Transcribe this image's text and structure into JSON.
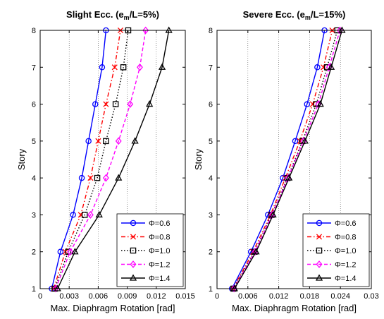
{
  "chart_data": [
    {
      "type": "line",
      "title": "Slight Ecc. (e_m/L=5%)",
      "title_parts": {
        "pre": "Slight Ecc. (e",
        "sub": "m",
        "post": "/L=5%)"
      },
      "xlabel": "Max. Diaphragm Rotation [rad]",
      "ylabel": "Story",
      "xlim": [
        0,
        0.015
      ],
      "ylim": [
        1,
        8
      ],
      "xticks": [
        0,
        0.003,
        0.006,
        0.009,
        0.012,
        0.015
      ],
      "xtick_labels": [
        "0",
        "0.003",
        "0.006",
        "0.009",
        "0.012",
        "0.015"
      ],
      "yticks": [
        1,
        2,
        3,
        4,
        5,
        6,
        7,
        8
      ],
      "ytick_labels": [
        "1",
        "2",
        "3",
        "4",
        "5",
        "6",
        "7",
        "8"
      ],
      "grid": "x-only-dotted",
      "legend": "bottom-right",
      "y": [
        1,
        2,
        3,
        4,
        5,
        6,
        7,
        8
      ],
      "series": [
        {
          "name": "Φ=0.6",
          "values": [
            0.0012,
            0.0021,
            0.0034,
            0.0043,
            0.005,
            0.0057,
            0.0064,
            0.0068
          ]
        },
        {
          "name": "Φ=0.8",
          "values": [
            0.0014,
            0.0026,
            0.0042,
            0.0052,
            0.006,
            0.0068,
            0.0077,
            0.0083
          ]
        },
        {
          "name": "Φ=1.0",
          "values": [
            0.0015,
            0.0029,
            0.0046,
            0.0059,
            0.0068,
            0.0078,
            0.0086,
            0.0091
          ]
        },
        {
          "name": "Φ=1.2",
          "values": [
            0.0016,
            0.0031,
            0.0052,
            0.0068,
            0.0081,
            0.0093,
            0.0103,
            0.0109
          ]
        },
        {
          "name": "Φ=1.4",
          "values": [
            0.0018,
            0.0036,
            0.0061,
            0.0081,
            0.0098,
            0.0113,
            0.0126,
            0.0133
          ]
        }
      ]
    },
    {
      "type": "line",
      "title": "Severe Ecc. (e_m/L=15%)",
      "title_parts": {
        "pre": "Severe Ecc. (e",
        "sub": "m",
        "post": "/L=15%)"
      },
      "xlabel": "Max. Diaphragm Rotation [rad]",
      "ylabel": "Story",
      "xlim": [
        0,
        0.03
      ],
      "ylim": [
        1,
        8
      ],
      "xticks": [
        0,
        0.006,
        0.012,
        0.018,
        0.024,
        0.03
      ],
      "xtick_labels": [
        "0",
        "0.006",
        "0.012",
        "0.018",
        "0.024",
        "0.03"
      ],
      "yticks": [
        1,
        2,
        3,
        4,
        5,
        6,
        7,
        8
      ],
      "ytick_labels": [
        "1",
        "2",
        "3",
        "4",
        "5",
        "6",
        "7",
        "8"
      ],
      "grid": "x-only-dotted",
      "legend": "bottom-right",
      "y": [
        1,
        2,
        3,
        4,
        5,
        6,
        7,
        8
      ],
      "series": [
        {
          "name": "Φ=0.6",
          "values": [
            0.0029,
            0.0066,
            0.0099,
            0.0128,
            0.0152,
            0.0175,
            0.0195,
            0.0209
          ]
        },
        {
          "name": "Φ=0.8",
          "values": [
            0.0031,
            0.007,
            0.0104,
            0.0133,
            0.0161,
            0.0186,
            0.0207,
            0.0224
          ]
        },
        {
          "name": "Φ=1.0",
          "values": [
            0.0032,
            0.0073,
            0.0106,
            0.0137,
            0.0166,
            0.0193,
            0.0214,
            0.0234
          ]
        },
        {
          "name": "Φ=1.2",
          "values": [
            0.0033,
            0.0074,
            0.0107,
            0.0138,
            0.0168,
            0.0197,
            0.0218,
            0.0239
          ]
        },
        {
          "name": "Φ=1.4",
          "values": [
            0.0034,
            0.0076,
            0.0109,
            0.014,
            0.0171,
            0.0201,
            0.0222,
            0.0243
          ]
        }
      ]
    }
  ],
  "series_styles": [
    {
      "color": "#0000ff",
      "dash": "",
      "marker": "circle"
    },
    {
      "color": "#ff0000",
      "dash": "6,3,1.5,3",
      "marker": "x"
    },
    {
      "color": "#000000",
      "dash": "1.5,2.5",
      "marker": "square"
    },
    {
      "color": "#ff00ff",
      "dash": "5,3",
      "marker": "diamond"
    },
    {
      "color": "#000000",
      "dash": "",
      "marker": "triangle"
    }
  ]
}
